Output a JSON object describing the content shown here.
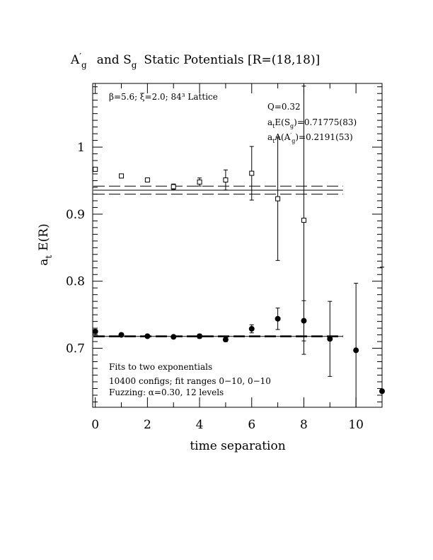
{
  "chart_data": {
    "type": "scatter",
    "title": {
      "part1_main": "A",
      "part1_prime": "′",
      "part1_sub": "g",
      "middle": "and S",
      "part2_sub": "g",
      "rest": "Static Potentials [R=(18,18)]"
    },
    "xlabel": "time separation",
    "ylabel": {
      "main": "a",
      "sub": "t",
      "rest": "E(R)"
    },
    "xlim": [
      -0.1,
      11.0
    ],
    "ylim": [
      0.612,
      1.095
    ],
    "x_major_ticks": [
      0,
      2,
      4,
      6,
      8,
      10
    ],
    "x_tick_labels": [
      "0",
      "2",
      "4",
      "6",
      "8",
      "10"
    ],
    "y_major_ticks": [
      0.7,
      0.8,
      0.9,
      1.0
    ],
    "y_tick_labels": [
      "0.7",
      "0.8",
      "0.9",
      "1"
    ],
    "grid": false,
    "annotations": {
      "lattice": "β=5.6; ξ=2.0; 84³ Lattice",
      "q": "Q=0.32",
      "energy_sg": "aₜE(S g)=0.71775(83)",
      "energy_ag_prefix": "a",
      "energy_ag_sub_t": "t",
      "energy_ag_mid": "A(A",
      "energy_ag_prime": "′",
      "energy_ag_sub_g": "g",
      "energy_ag_value": ")=0.2191(53)",
      "energy_sg_prefix": "a",
      "energy_sg_sub_t": "t",
      "energy_sg_mid": "E(S",
      "energy_sg_sub_g": "g",
      "energy_sg_value": ")=0.71775(83)",
      "fits_line1": "Fits to two exponentials",
      "fits_line2": "10400 configs; fit ranges 0−10, 0−10",
      "fits_line3": "Fuzzing: α=0.30, 12 levels"
    },
    "series": [
      {
        "marker": "open-square",
        "x": [
          0,
          1,
          2,
          3,
          4,
          5,
          6,
          7,
          8
        ],
        "y": [
          0.967,
          0.957,
          0.951,
          0.941,
          0.948,
          0.951,
          0.961,
          0.923,
          0.891
        ],
        "yerr": [
          0.003,
          0.003,
          0.003,
          0.004,
          0.006,
          0.015,
          0.04,
          0.092,
          0.2
        ]
      },
      {
        "marker": "filled-circle",
        "x": [
          0,
          1,
          2,
          3,
          4,
          5,
          6,
          7,
          8,
          9,
          10,
          11
        ],
        "y": [
          0.725,
          0.72,
          0.718,
          0.717,
          0.718,
          0.713,
          0.729,
          0.744,
          0.741,
          0.714,
          0.697,
          0.636
        ],
        "yerr": [
          0.003,
          0.002,
          0.002,
          0.002,
          0.003,
          0.003,
          0.006,
          0.016,
          0.03,
          0.056,
          0.1,
          0.185
        ]
      }
    ],
    "fit_bands": [
      {
        "center": 0.9358,
        "upper": 0.9418,
        "lower": 0.9298,
        "x_range": [
          -0.1,
          9.5
        ]
      },
      {
        "center": 0.71775,
        "upper": 0.71858,
        "lower": 0.71692,
        "x_range": [
          -0.1,
          9.5
        ]
      }
    ]
  }
}
